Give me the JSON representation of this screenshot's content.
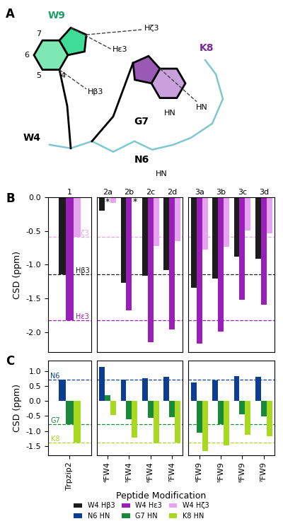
{
  "figure": {
    "xlabel": "Peptide Modification",
    "legend": "lower center"
  },
  "diagram": {
    "panel_label": "A",
    "residues": [
      "W9",
      "K8",
      "G7",
      "N6",
      "W4"
    ],
    "ring_numbers": [
      "7",
      "6",
      "5",
      "4"
    ],
    "protons": [
      "Hζ3",
      "Hε3",
      "Hβ3",
      "HN",
      "HN",
      "HN"
    ]
  },
  "chart_data": [
    {
      "type": "bar",
      "panel_label": "B",
      "ylabel": "CSD (ppm)",
      "category_headings": [
        "1"
      ],
      "categories": [
        "Trpzip2"
      ],
      "series": [
        {
          "name": "W4 Hβ3",
          "color": "#1c1c1c",
          "values": [
            -1.14
          ],
          "ref_label": "Hβ3"
        },
        {
          "name": "W4 Hε3",
          "color": "#9a1fb8",
          "values": [
            -1.82
          ],
          "ref_label": "Hε3"
        },
        {
          "name": "W4 Hζ3",
          "color": "#e6a3ef",
          "values": [
            -0.59
          ],
          "ref_label": "Hζ3"
        }
      ],
      "ylim": [
        -2.3,
        0.0
      ],
      "yticks": [
        0.0,
        -0.5,
        -1.0,
        -1.5,
        -2.0
      ],
      "tick_labels": "y"
    },
    {
      "type": "bar",
      "category_headings": [
        "2a",
        "2b",
        "2c",
        "2d"
      ],
      "categories": [
        "⁴FW4",
        "⁵FW4",
        "⁶FW4",
        "⁷FW4"
      ],
      "series": [
        {
          "name": "W4 Hβ3",
          "color": "#1c1c1c",
          "values": [
            -0.2,
            -1.27,
            -1.16,
            -1.08
          ]
        },
        {
          "name": "W4 Hε3",
          "color": "#9a1fb8",
          "values": [
            null,
            -1.68,
            -2.15,
            -1.96
          ]
        },
        {
          "name": "W4 Hζ3",
          "color": "#e6a3ef",
          "values": [
            -0.08,
            null,
            -0.72,
            -0.65
          ]
        }
      ],
      "annotations": [
        {
          "category": "⁴FW4",
          "series": "W4 Hε3",
          "text": "*"
        },
        {
          "category": "⁵FW4",
          "series": "W4 Hζ3",
          "text": "*"
        }
      ],
      "ylim": [
        -2.3,
        0.0
      ],
      "yticks": [
        0.0,
        -0.5,
        -1.0,
        -1.5,
        -2.0
      ],
      "tick_labels": false
    },
    {
      "type": "bar",
      "category_headings": [
        "3a",
        "3b",
        "3c",
        "3d"
      ],
      "categories": [
        "⁴FW9",
        "⁵FW9",
        "⁶FW9",
        "⁷FW9"
      ],
      "series": [
        {
          "name": "W4 Hβ3",
          "color": "#1c1c1c",
          "values": [
            -1.34,
            -1.2,
            -0.88,
            -0.91
          ]
        },
        {
          "name": "W4 Hε3",
          "color": "#9a1fb8",
          "values": [
            -2.17,
            -1.99,
            -1.52,
            -1.59
          ]
        },
        {
          "name": "W4 Hζ3",
          "color": "#e6a3ef",
          "values": [
            -0.78,
            -0.73,
            -0.49,
            -0.53
          ]
        }
      ],
      "ylim": [
        -2.3,
        0.0
      ],
      "yticks": [
        0.0,
        -0.5,
        -1.0,
        -1.5,
        -2.0
      ],
      "tick_labels": false
    },
    {
      "type": "bar",
      "panel_label": "C",
      "ylabel": "CSD (ppm)",
      "categories": [
        "Trpzip2"
      ],
      "series": [
        {
          "name": "N6 HN",
          "color": "#0b3d91",
          "values": [
            0.7
          ],
          "ref_label": "N6"
        },
        {
          "name": "G7 HN",
          "color": "#1a8a3a",
          "values": [
            -0.77
          ],
          "ref_label": "G7"
        },
        {
          "name": "K8 HN",
          "color": "#a8d820",
          "values": [
            -1.38
          ],
          "ref_label": "K8"
        }
      ],
      "ylim": [
        -1.8,
        1.35
      ],
      "yticks": [
        1.0,
        0.5,
        0.0,
        -0.5,
        -1.0,
        -1.5
      ],
      "tick_labels": true
    },
    {
      "type": "bar",
      "categories": [
        "⁴FW4",
        "⁵FW4",
        "⁶FW4",
        "⁷FW4"
      ],
      "series": [
        {
          "name": "N6 HN",
          "color": "#0b3d91",
          "values": [
            1.12,
            0.7,
            0.75,
            0.8
          ]
        },
        {
          "name": "G7 HN",
          "color": "#1a8a3a",
          "values": [
            0.2,
            -0.62,
            -0.57,
            -0.53
          ]
        },
        {
          "name": "K8 HN",
          "color": "#a8d820",
          "values": [
            -0.47,
            -1.22,
            -1.42,
            -1.38
          ]
        }
      ],
      "ylim": [
        -1.8,
        1.35
      ],
      "yticks": [
        1.0,
        0.5,
        0.0,
        -0.5,
        -1.0,
        -1.5
      ],
      "tick_labels": "x"
    },
    {
      "type": "bar",
      "categories": [
        "⁴FW9",
        "⁵FW9",
        "⁶FW9",
        "⁷FW9"
      ],
      "series": [
        {
          "name": "N6 HN",
          "color": "#0b3d91",
          "values": [
            0.62,
            0.68,
            0.82,
            0.8
          ]
        },
        {
          "name": "G7 HN",
          "color": "#1a8a3a",
          "values": [
            -1.05,
            -0.78,
            -0.45,
            -0.52
          ]
        },
        {
          "name": "K8 HN",
          "color": "#a8d820",
          "values": [
            -1.67,
            -1.47,
            -1.13,
            -1.17
          ]
        }
      ],
      "ylim": [
        -1.8,
        1.35
      ],
      "yticks": [
        1.0,
        0.5,
        0.0,
        -0.5,
        -1.0,
        -1.5
      ],
      "tick_labels": "x"
    }
  ]
}
